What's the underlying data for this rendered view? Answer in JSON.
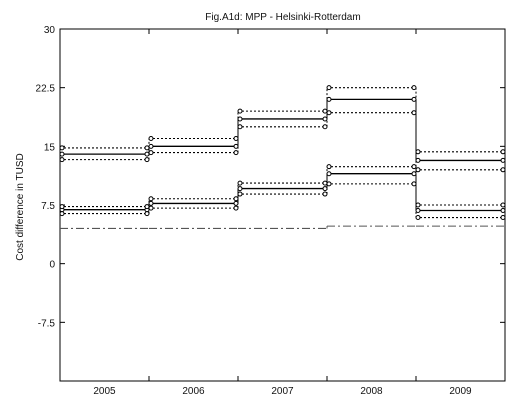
{
  "chart_data": {
    "type": "line",
    "title": "Fig.A1d: MPP - Helsinki-Rotterdam",
    "xlabel": "",
    "ylabel": "Cost difference in TUSD",
    "x_categories": [
      "2005",
      "2006",
      "2007",
      "2008",
      "2009"
    ],
    "y_ticks": [
      30,
      22.5,
      15,
      7.5,
      0,
      -7.5
    ],
    "ylim": [
      -15,
      30
    ],
    "grid": false,
    "series": [
      {
        "style": "solid",
        "color": "#000000",
        "markers": true,
        "values": [
          14.0,
          15.0,
          18.5,
          21.0,
          13.2
        ]
      },
      {
        "style": "dotted",
        "color": "#000000",
        "markers": true,
        "values": [
          14.8,
          16.0,
          19.5,
          22.5,
          14.3
        ]
      },
      {
        "style": "dotted",
        "color": "#000000",
        "markers": true,
        "values": [
          13.3,
          14.2,
          17.5,
          19.3,
          12.0
        ]
      },
      {
        "style": "solid",
        "color": "#000000",
        "markers": true,
        "values": [
          6.9,
          7.7,
          9.6,
          11.5,
          6.8
        ]
      },
      {
        "style": "dotted",
        "color": "#000000",
        "markers": true,
        "values": [
          7.3,
          8.3,
          10.3,
          12.4,
          7.5
        ]
      },
      {
        "style": "dotted",
        "color": "#000000",
        "markers": true,
        "values": [
          6.4,
          7.1,
          8.9,
          10.2,
          5.9
        ]
      },
      {
        "style": "dashdot",
        "color": "#555555",
        "markers": false,
        "values": [
          4.5,
          4.5,
          4.5,
          4.8,
          4.8
        ]
      }
    ]
  }
}
